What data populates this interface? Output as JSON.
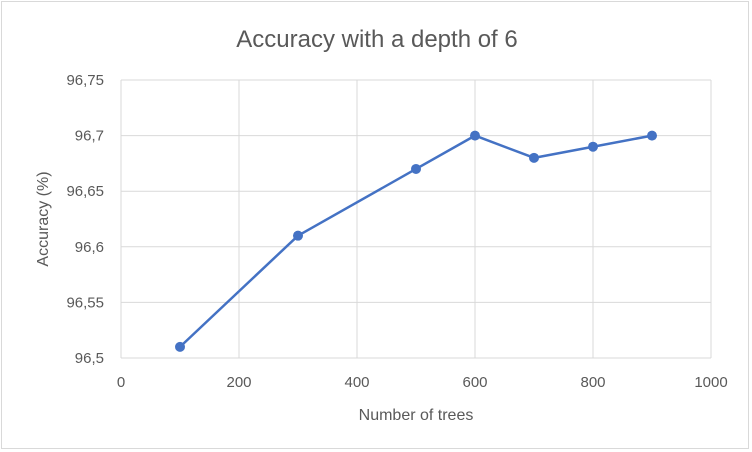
{
  "chart_data": {
    "type": "line",
    "title": "Accuracy with a depth of 6",
    "xlabel": "Number of trees",
    "ylabel": "Accuracy (%)",
    "xlim": [
      0,
      1000
    ],
    "ylim": [
      96.5,
      96.75
    ],
    "x_ticks": [
      "0",
      "200",
      "400",
      "600",
      "800",
      "1000"
    ],
    "y_ticks": [
      "96,5",
      "96,55",
      "96,6",
      "96,65",
      "96,7",
      "96,75"
    ],
    "grid": true,
    "legend": "none",
    "series": [
      {
        "color": "#4472c4",
        "x": [
          100,
          300,
          500,
          600,
          700,
          800,
          900
        ],
        "y": [
          96.51,
          96.61,
          96.67,
          96.7,
          96.68,
          96.69,
          96.7
        ]
      }
    ]
  }
}
